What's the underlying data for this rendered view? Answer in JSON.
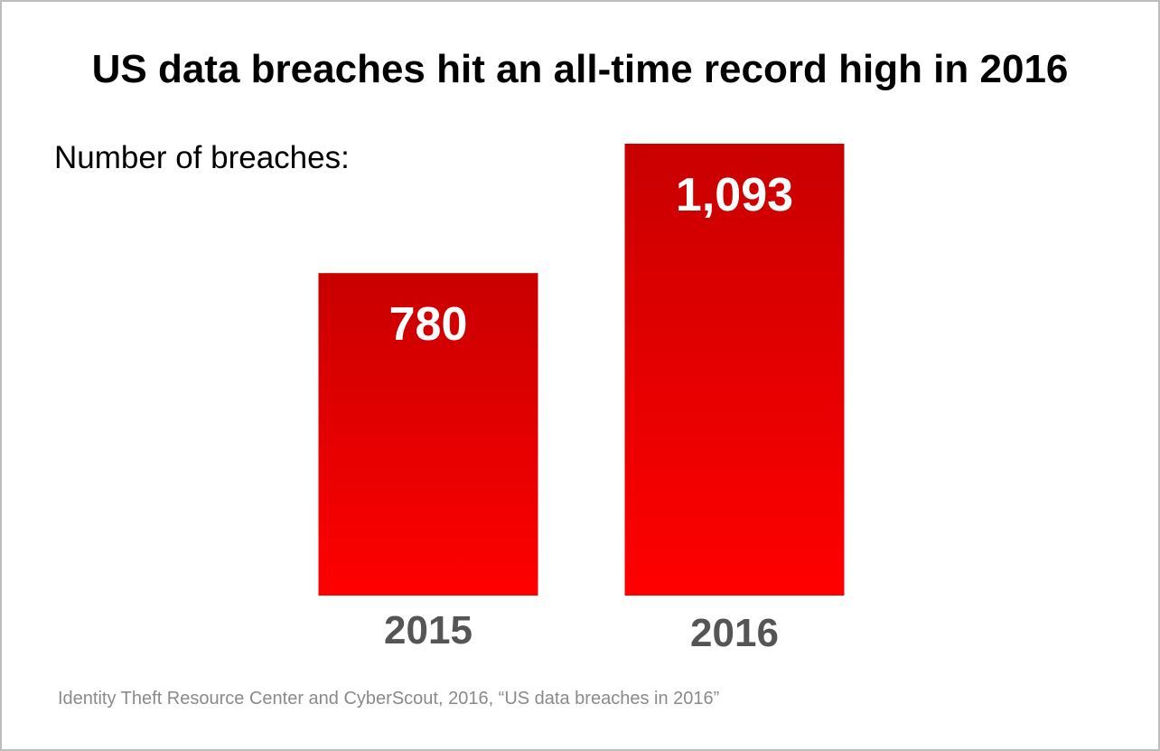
{
  "chart_data": {
    "type": "bar",
    "title": "US data breaches hit an all-time record high in 2016",
    "ylabel": "Number of breaches:",
    "categories": [
      "2015",
      "2016"
    ],
    "values": [
      780,
      1093
    ],
    "value_labels": [
      "780",
      "1,093"
    ],
    "ylim": [
      0,
      1093
    ],
    "grid": false,
    "source": "Identity Theft Resource Center and CyberScout, 2016, “US data breaches in 2016”"
  },
  "colors": {
    "bar_top": "#c80000",
    "bar_bottom": "#ff0000",
    "value_label": "#ffffff",
    "category_label": "#555555",
    "source_text": "#8a8a8a",
    "frame_border": "#bdbdbd"
  }
}
